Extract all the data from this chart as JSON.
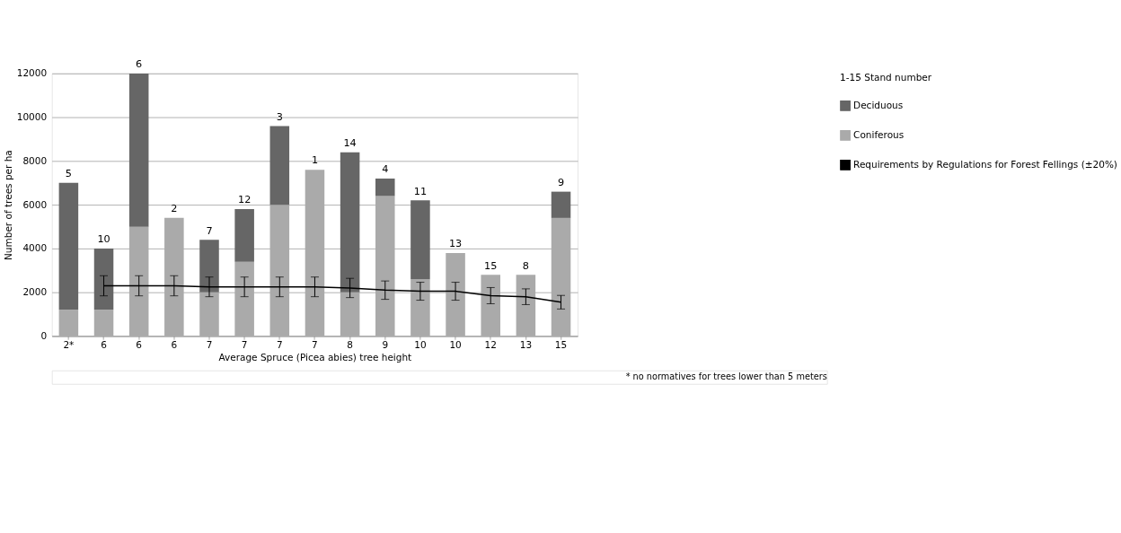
{
  "chart_data": {
    "type": "bar",
    "stacked": true,
    "xlabel": "Average Spruce (Picea abies) tree height",
    "ylabel": "Number of trees per ha",
    "legend_title": "1-15  Stand number",
    "categories": [
      "2*",
      "6",
      "6",
      "6",
      "7",
      "7",
      "7",
      "7",
      "8",
      "9",
      "10",
      "10",
      "12",
      "13",
      "15"
    ],
    "series": [
      {
        "name": "Coniferous",
        "color": "#aaaaaa",
        "values": [
          1200,
          1200,
          5000,
          5400,
          2000,
          3400,
          6000,
          7600,
          2000,
          6400,
          2600,
          3800,
          2800,
          2800,
          5400
        ]
      },
      {
        "name": "Deciduous",
        "color": "#666666",
        "values": [
          5800,
          2800,
          7000,
          0,
          2400,
          2400,
          3600,
          0,
          6400,
          800,
          3600,
          0,
          0,
          0,
          1200
        ]
      },
      {
        "name": "Requirements by Regulations for Forest Fellings (±20%)",
        "type": "line",
        "color": "#000000",
        "values": [
          null,
          2300,
          2300,
          2300,
          2250,
          2250,
          2250,
          2250,
          2200,
          2100,
          2050,
          2050,
          1850,
          1800,
          1550
        ],
        "errors": [
          null,
          460,
          460,
          460,
          450,
          450,
          450,
          450,
          440,
          420,
          410,
          410,
          370,
          360,
          310
        ]
      }
    ],
    "ylim": [
      0,
      12000
    ],
    "yticks": [
      0,
      2000,
      4000,
      6000,
      8000,
      10000,
      12000
    ],
    "grid": "y",
    "legend": "right",
    "annotations": [
      "5",
      "10",
      "6",
      "2",
      "7",
      "12",
      "3",
      "1",
      "14",
      "4",
      "11",
      "13",
      "15",
      "8",
      "9",
      "* no normatives for trees lower than 5 meters"
    ]
  }
}
